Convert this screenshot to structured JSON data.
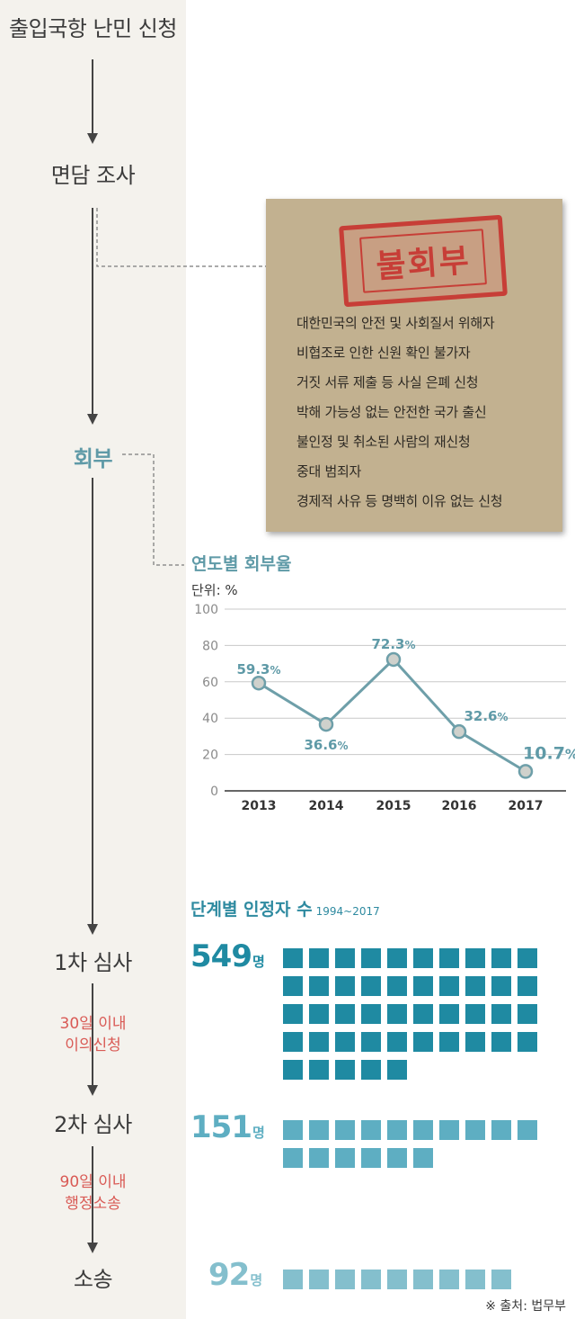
{
  "flow": {
    "steps": [
      "출입국항 난민 신청",
      "면담 조사",
      "회부",
      "1차 심사",
      "2차 심사",
      "소송"
    ],
    "notes": [
      [
        "30일 이내",
        "이의신청"
      ],
      [
        "90일 이내",
        "행정소송"
      ]
    ]
  },
  "rejection": {
    "stamp": "불회부",
    "reasons": [
      "대한민국의 안전 및 사회질서 위해자",
      "비협조로 인한 신원 확인 불가자",
      "거짓 서류 제출 등 사실 은폐 신청",
      "박해 가능성 없는 안전한 국가 출신",
      "불인정 및 취소된 사람의 재신청",
      "중대 범죄자",
      "경제적 사유 등 명백히 이유 없는 신청"
    ]
  },
  "chart_data": {
    "type": "line",
    "title": "연도별 회부율",
    "unit_label": "단위: %",
    "x": [
      "2013",
      "2014",
      "2015",
      "2016",
      "2017"
    ],
    "series": [
      {
        "values": [
          59.3,
          36.6,
          72.3,
          32.6,
          10.7
        ]
      }
    ],
    "value_labels": [
      "59.3",
      "36.6",
      "72.3",
      "32.6",
      "10.7"
    ],
    "label_suffix": "%",
    "yticks": [
      0,
      20,
      40,
      60,
      80,
      100
    ],
    "ylim": [
      0,
      100
    ],
    "grid": true
  },
  "recognized": {
    "title": "단계별 인정자 수",
    "period": "1994~2017",
    "unit": "명",
    "stages": [
      {
        "count": 549,
        "label": "549",
        "icons": 45,
        "color": "#1f8aa2"
      },
      {
        "count": 151,
        "label": "151",
        "icons": 16,
        "color": "#5eaec2"
      },
      {
        "count": 92,
        "label": "92",
        "icons": 9,
        "color": "#84bfcd"
      }
    ]
  },
  "source": "※ 출처: 법무부",
  "colors": {
    "teal": "#5f9aa7",
    "red": "#c73e37",
    "note_red": "#d95a55",
    "card": "#c2b190"
  }
}
